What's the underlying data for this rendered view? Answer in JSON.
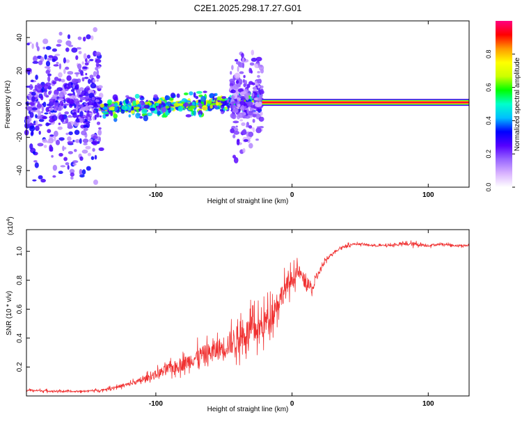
{
  "figure_title": "C2E1.2025.298.17.27.G01",
  "chart_data": [
    {
      "type": "heatmap",
      "name": "spectrogram",
      "xlabel": "Height of straight line (km)",
      "ylabel": "Frequency (Hz)",
      "xlim": [
        -195,
        130
      ],
      "ylim": [
        -50,
        50
      ],
      "x_ticks": [
        -100,
        0,
        100
      ],
      "x_tick_labels": [
        "-100",
        "0",
        "100"
      ],
      "y_ticks": [
        -40,
        -20,
        0,
        20,
        40
      ],
      "y_tick_labels": [
        "-40",
        "-20",
        "0",
        "20",
        "40"
      ],
      "colorbar": {
        "label": "Normalized spectral amplitude",
        "range": [
          0,
          1
        ],
        "ticks": [
          0.0,
          0.2,
          0.4,
          0.6,
          0.8
        ],
        "tick_labels": [
          "0.0",
          "0.2",
          "0.4",
          "0.6",
          "0.8"
        ],
        "colors": [
          "#ffffff",
          "#d9b3ff",
          "#9966ff",
          "#5500ff",
          "#0000ff",
          "#00bfff",
          "#00ffcc",
          "#00ff00",
          "#ccff00",
          "#ffff00",
          "#ff9900",
          "#ff0000",
          "#ff0080"
        ]
      },
      "carrier": {
        "x_start": -22,
        "x_end": 130,
        "frequency": 1,
        "amplitude": 0.97
      },
      "scatter_regions": [
        {
          "x_range": [
            -195,
            -140
          ],
          "freq_spread": 50,
          "amplitude": 0.25
        },
        {
          "x_range": [
            -140,
            -22
          ],
          "freq_spread": 8,
          "amplitude": 0.45
        },
        {
          "x_range": [
            -45,
            -22
          ],
          "freq_spread": 38,
          "amplitude": 0.2
        }
      ],
      "grid": false
    },
    {
      "type": "line",
      "name": "snr",
      "xlabel": "Height of straight line (km)",
      "ylabel": "SNR (10 * v/v)",
      "y_multiplier": "(x10",
      "y_multiplier_exp": "4",
      "y_multiplier_close": ")",
      "xlim": [
        -195,
        130
      ],
      "ylim": [
        0.0,
        1.15
      ],
      "x_ticks": [
        -100,
        0,
        100
      ],
      "x_tick_labels": [
        "-100",
        "0",
        "100"
      ],
      "y_ticks": [
        0.2,
        0.4,
        0.6,
        0.8,
        1.0
      ],
      "y_tick_labels": [
        "0.2",
        "0.4",
        "0.6",
        "0.8",
        "1.0"
      ],
      "color": "#f03030",
      "series": [
        {
          "name": "SNR",
          "x": [
            -195,
            -180,
            -160,
            -140,
            -130,
            -120,
            -110,
            -100,
            -90,
            -80,
            -70,
            -60,
            -50,
            -40,
            -30,
            -22,
            -15,
            -10,
            -5,
            0,
            5,
            10,
            15,
            20,
            25,
            30,
            35,
            40,
            45,
            50,
            60,
            70,
            80,
            90,
            100,
            110,
            120,
            130
          ],
          "values": [
            0.04,
            0.035,
            0.03,
            0.04,
            0.06,
            0.08,
            0.11,
            0.15,
            0.19,
            0.22,
            0.27,
            0.3,
            0.34,
            0.4,
            0.45,
            0.48,
            0.57,
            0.66,
            0.74,
            0.81,
            0.86,
            0.78,
            0.74,
            0.86,
            0.94,
            0.99,
            1.02,
            1.04,
            1.05,
            1.05,
            1.04,
            1.04,
            1.05,
            1.05,
            1.04,
            1.05,
            1.04,
            1.04
          ],
          "noise": [
            0.015,
            0.015,
            0.012,
            0.015,
            0.02,
            0.03,
            0.04,
            0.06,
            0.08,
            0.1,
            0.13,
            0.15,
            0.17,
            0.2,
            0.22,
            0.2,
            0.2,
            0.18,
            0.16,
            0.13,
            0.1,
            0.1,
            0.08,
            0.05,
            0.03,
            0.02,
            0.02,
            0.02,
            0.015,
            0.015,
            0.015,
            0.015,
            0.02,
            0.03,
            0.02,
            0.015,
            0.015,
            0.015
          ]
        }
      ],
      "grid": false
    }
  ]
}
